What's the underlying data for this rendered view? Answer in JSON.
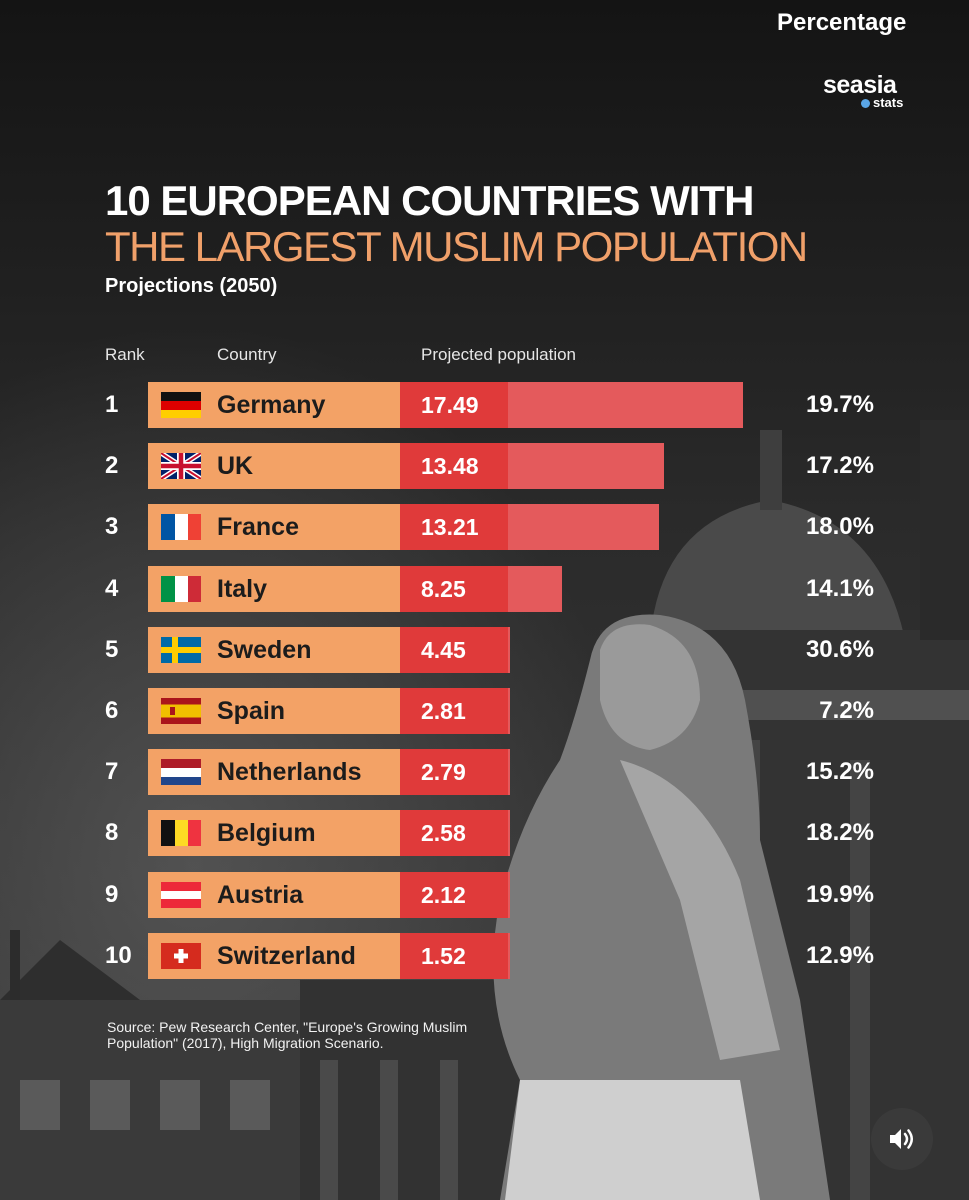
{
  "brand": {
    "name": "seasia",
    "sub": "stats"
  },
  "title_line1": "10 EUROPEAN COUNTRIES WITH",
  "title_line2": "THE LARGEST MUSLIM POPULATION",
  "subtitle": "Projections (2050)",
  "headers": {
    "rank": "Rank",
    "country": "Country",
    "population": "Projected population",
    "percentage": "Percentage"
  },
  "chart_data": {
    "type": "bar",
    "title": "10 European countries with the largest Muslim population",
    "subtitle": "Projections (2050)",
    "xlabel": "Projected population",
    "categories": [
      "Germany",
      "UK",
      "France",
      "Italy",
      "Sweden",
      "Spain",
      "Netherlands",
      "Belgium",
      "Austria",
      "Switzerland"
    ],
    "values": [
      17.49,
      13.48,
      13.21,
      8.25,
      4.45,
      2.81,
      2.79,
      2.58,
      2.12,
      1.52
    ],
    "value_labels": [
      "17.49",
      "13.48",
      "13.21",
      "8.25",
      "4.45",
      "2.81",
      "2.79",
      "2.58",
      "2.12",
      "1.52"
    ],
    "ranks": [
      "1",
      "2",
      "3",
      "4",
      "5",
      "6",
      "7",
      "8",
      "9",
      "10"
    ],
    "percentages": [
      "19.7%",
      "17.2%",
      "18.0%",
      "14.1%",
      "30.6%",
      "7.2%",
      "15.2%",
      "18.2%",
      "19.9%",
      "12.9%"
    ],
    "xlim": [
      0,
      17.49
    ]
  },
  "source": "Source: Pew Research Center, \"Europe's Growing Muslim Population\" (2017), High Migration Scenario.",
  "colors": {
    "country_box": "#f3a266",
    "bar": "#e45a5c",
    "bar_dark": "#e03a3a",
    "title_accent": "#f0a06a"
  },
  "flags": [
    "germany-flag-icon",
    "uk-flag-icon",
    "france-flag-icon",
    "italy-flag-icon",
    "sweden-flag-icon",
    "spain-flag-icon",
    "netherlands-flag-icon",
    "belgium-flag-icon",
    "austria-flag-icon",
    "switzerland-flag-icon"
  ],
  "audio_button": "speaker-icon"
}
